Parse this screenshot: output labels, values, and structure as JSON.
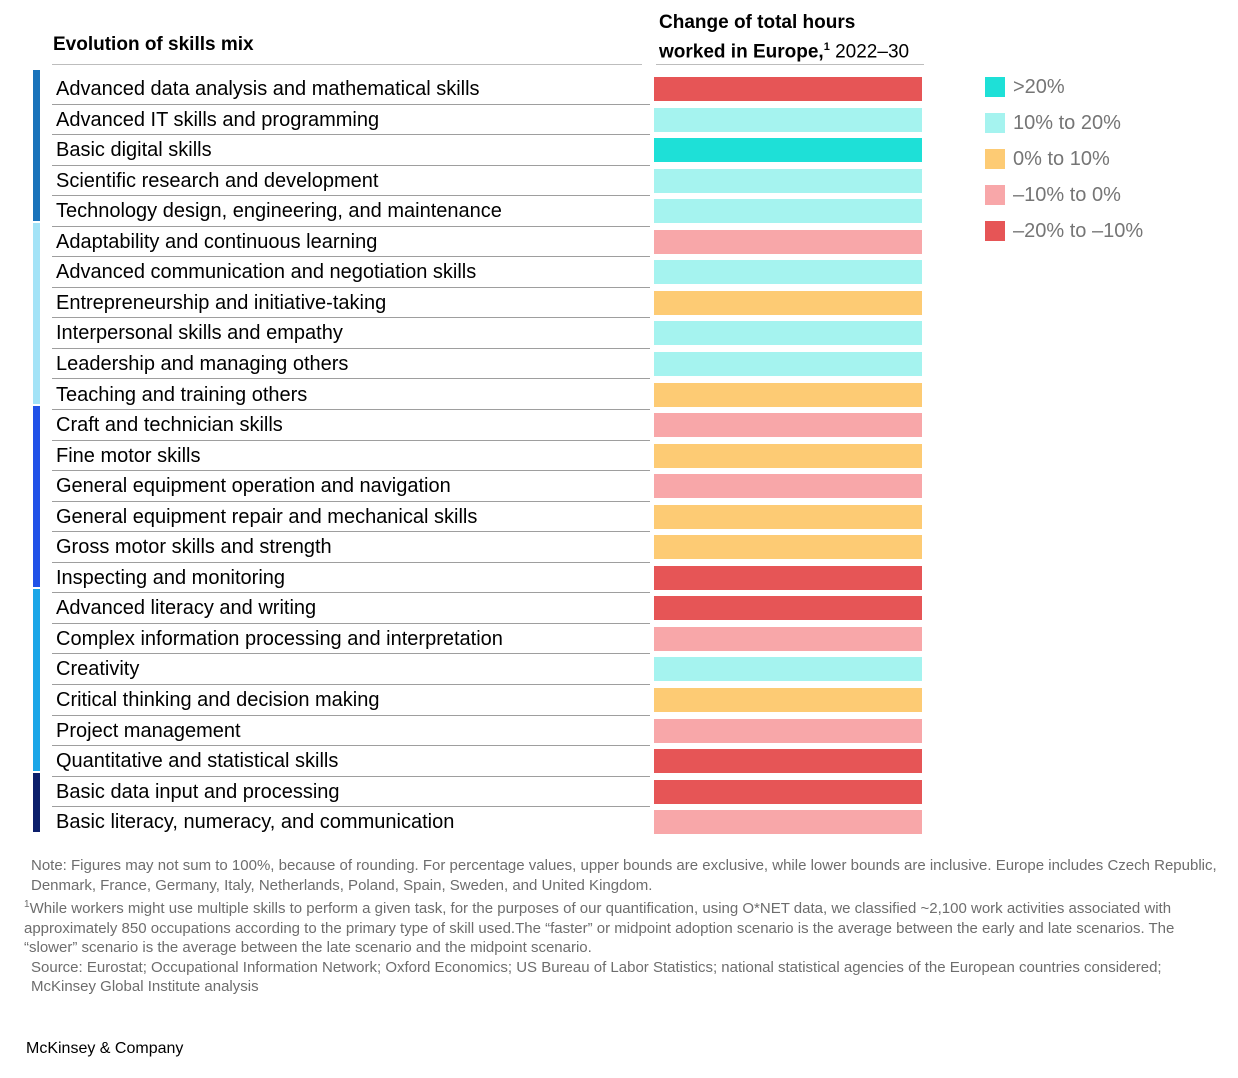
{
  "header": {
    "left_title": "Evolution of skills mix",
    "right_title_bold_1": "Change of total hours",
    "right_title_bold_2": "worked in Europe,",
    "right_title_sup": "1",
    "right_title_years": " 2022–30"
  },
  "legend": [
    {
      "label": ">20%",
      "color": "#1ee0d7"
    },
    {
      "label": "10% to 20%",
      "color": "#a5f3ef"
    },
    {
      "label": "0% to 10%",
      "color": "#fdcb74"
    },
    {
      "label": "–10% to 0%",
      "color": "#f8a7a9"
    },
    {
      "label": "–20% to –10%",
      "color": "#e65556"
    }
  ],
  "groups": [
    {
      "color": "#1a73bb",
      "count": 5
    },
    {
      "color": "#a3e3f7",
      "count": 6
    },
    {
      "color": "#2152e8",
      "count": 6
    },
    {
      "color": "#1ba6e8",
      "count": 6
    },
    {
      "color": "#0c1f6b",
      "count": 2
    }
  ],
  "chart_data": {
    "type": "table",
    "title": "Change of total hours worked in Europe, 2022–30",
    "row_header": "Evolution of skills mix",
    "categories": [
      "Advanced data analysis and mathematical skills",
      "Advanced IT skills and programming",
      "Basic digital skills",
      "Scientific research and development",
      "Technology design, engineering, and maintenance",
      "Adaptability and continuous learning",
      "Advanced communication and negotiation skills",
      "Entrepreneurship and initiative-taking",
      "Interpersonal skills and empathy",
      "Leadership and managing others",
      "Teaching and training others",
      "Craft and technician skills",
      "Fine motor skills",
      "General equipment operation and navigation",
      "General equipment repair and mechanical skills",
      "Gross motor skills and strength",
      "Inspecting and monitoring",
      "Advanced literacy and writing",
      "Complex information processing and interpretation",
      "Creativity",
      "Critical thinking and decision making",
      "Project management",
      "Quantitative and statistical skills",
      "Basic data input and processing",
      "Basic literacy, numeracy, and communication"
    ],
    "values": [
      "–20% to –10%",
      "10% to 20%",
      ">20%",
      "10% to 20%",
      "10% to 20%",
      "–10% to 0%",
      "10% to 20%",
      "0% to 10%",
      "10% to 20%",
      "10% to 20%",
      "0% to 10%",
      "–10% to 0%",
      "0% to 10%",
      "–10% to 0%",
      "0% to 10%",
      "0% to 10%",
      "–20% to –10%",
      "–20% to –10%",
      "–10% to 0%",
      "10% to 20%",
      "0% to 10%",
      "–10% to 0%",
      "–20% to –10%",
      "–20% to –10%",
      "–10% to 0%"
    ],
    "legend_placement": "right"
  },
  "notes": {
    "note": "Note: Figures may not sum to 100%, because of rounding. For percentage values, upper bounds are exclusive, while lower bounds are inclusive. Europe includes Czech Republic, Denmark, France, Germany, Italy, Netherlands, Poland, Spain, Sweden, and United Kingdom.",
    "footnote_mark": "1",
    "footnote": "While workers might use multiple skills to perform a given task, for the purposes of our quantification, using O*NET data, we classified ~2,100 work activities associated with approximately 850 occupations according to the primary type of skill used.The “faster” or midpoint adoption scenario is the average between the early and late scenarios. The “slower” scenario is the average between the late scenario and the midpoint scenario.",
    "source": "Source: Eurostat; Occupational Information Network; Oxford Economics; US Bureau of Labor Statistics; national statistical agencies of the European countries considered; McKinsey Global Institute analysis"
  },
  "brand": "McKinsey & Company"
}
